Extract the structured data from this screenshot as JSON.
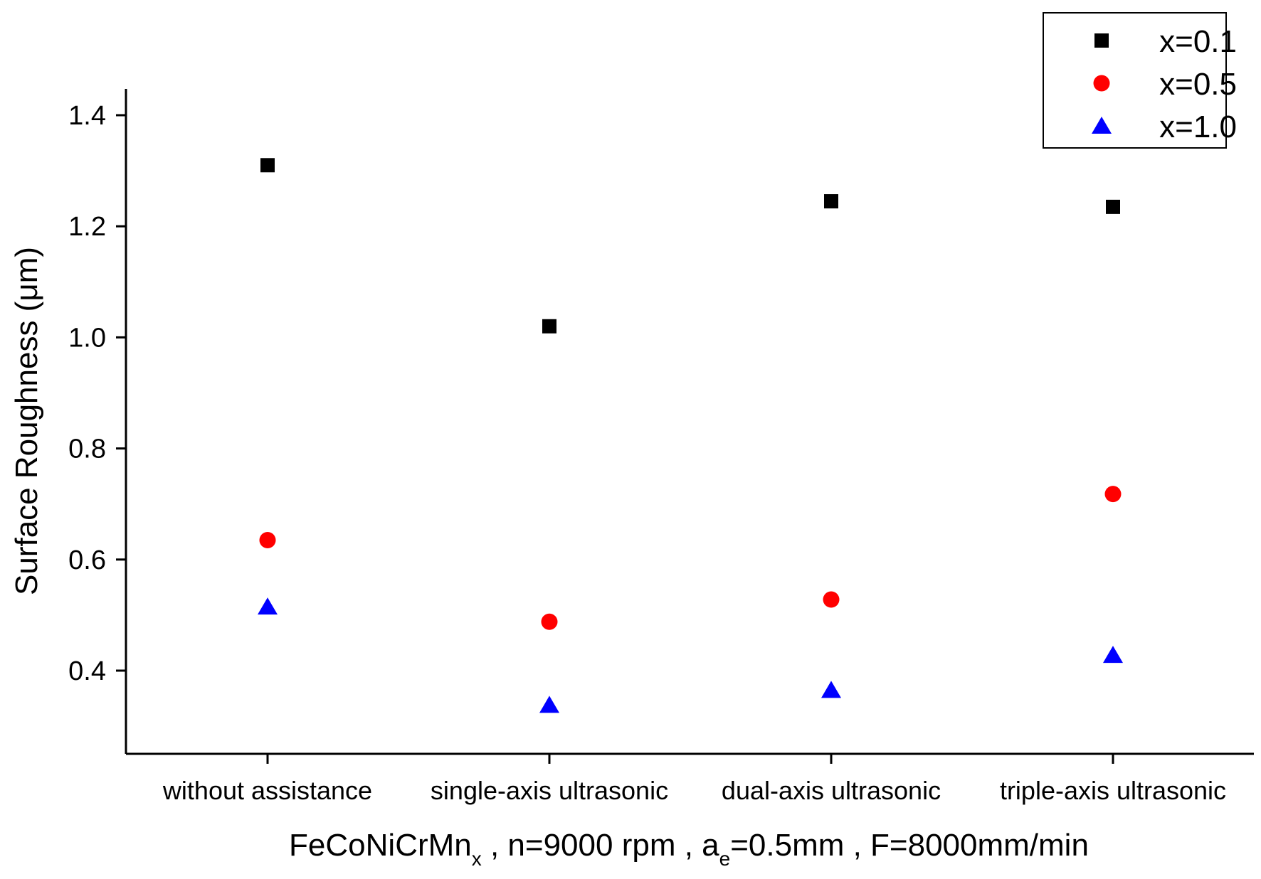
{
  "chart_data": {
    "type": "scatter",
    "categories": [
      "without assistance",
      "single-axis ultrasonic",
      "dual-axis ultrasonic",
      "triple-axis ultrasonic"
    ],
    "series": [
      {
        "name": "x=0.1",
        "marker": "square",
        "color": "#000000",
        "values": [
          1.31,
          1.02,
          1.245,
          1.235
        ]
      },
      {
        "name": "x=0.5",
        "marker": "circle",
        "color": "#ff0000",
        "values": [
          0.635,
          0.488,
          0.528,
          0.718
        ]
      },
      {
        "name": "x=1.0",
        "marker": "triangle",
        "color": "#0000ff",
        "values": [
          0.515,
          0.338,
          0.365,
          0.428
        ]
      }
    ],
    "ylabel": "Surface Roughness (μm)",
    "xlabel": {
      "main": "FeCoNiCrMn",
      "sub_x": "x",
      "part2": " , n=9000 rpm , a",
      "sub_e": "e",
      "part3": "=0.5mm , F=8000mm/min"
    },
    "yticks": [
      "0.4",
      "0.6",
      "0.8",
      "1.0",
      "1.2",
      "1.4"
    ],
    "ylim": [
      0.26,
      1.45
    ],
    "grid": false,
    "legend_position": "top-right"
  }
}
